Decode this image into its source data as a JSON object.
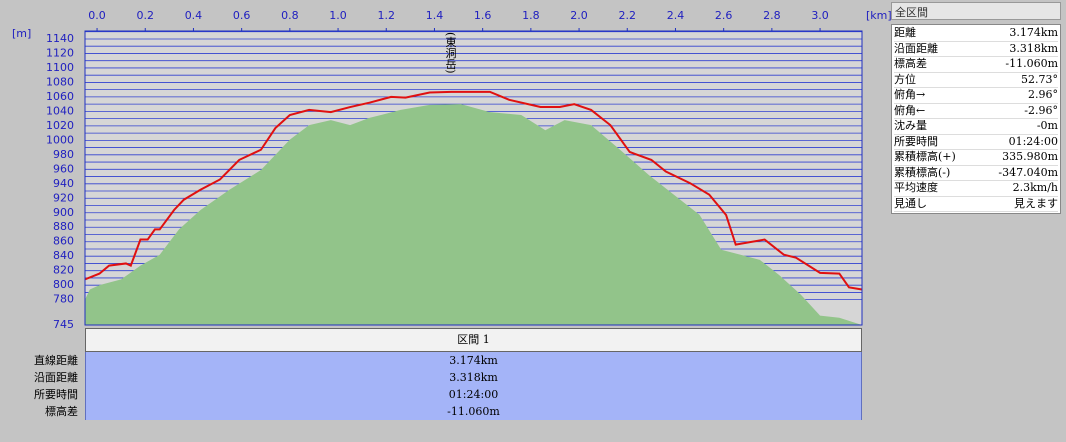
{
  "chart_data": {
    "type": "line",
    "annotation": "(東洞岳)",
    "x_unit": "[km]",
    "y_unit": "[m]",
    "xlim": [
      -0.05,
      3.174
    ],
    "ylim": [
      745,
      1151
    ],
    "xticks": [
      {
        "value": 0,
        "label": "0.0"
      },
      0.2,
      0.4,
      0.6,
      0.8,
      {
        "value": 1,
        "label": "1.0"
      },
      1.2,
      1.4,
      1.6,
      1.8,
      {
        "value": 2,
        "label": "2.0"
      },
      2.2,
      2.4,
      2.6,
      2.8,
      {
        "value": 3,
        "label": "3.0"
      }
    ],
    "yticks": [
      745,
      780,
      800,
      820,
      840,
      860,
      880,
      900,
      920,
      940,
      960,
      980,
      1000,
      1020,
      1040,
      1060,
      1080,
      1100,
      1120,
      1140
    ],
    "minor_yticks": [
      790,
      810,
      830,
      850,
      870,
      890,
      910,
      930,
      950,
      970,
      990,
      1010,
      1030,
      1050,
      1070,
      1090,
      1110,
      1130,
      1150
    ],
    "grid": true,
    "series": [
      {
        "type": "area",
        "color": "#92c48a",
        "x": [
          -0.05,
          -0.03,
          0.01,
          0.1,
          0.18,
          0.26,
          0.34,
          0.43,
          0.55,
          0.68,
          0.8,
          0.88,
          0.97,
          1.05,
          1.13,
          1.26,
          1.38,
          1.51,
          1.63,
          1.76,
          1.86,
          1.94,
          2.05,
          2.17,
          2.29,
          2.42,
          2.5,
          2.59,
          2.67,
          2.75,
          2.83,
          2.92,
          3.0,
          3.08,
          3.174
        ],
        "values": [
          780,
          794,
          800,
          808,
          827,
          842,
          877,
          904,
          932,
          959,
          1001,
          1021,
          1028,
          1021,
          1031,
          1042,
          1049,
          1050,
          1039,
          1035,
          1014,
          1028,
          1021,
          987,
          952,
          918,
          897,
          849,
          842,
          835,
          814,
          787,
          758,
          755,
          745
        ]
      },
      {
        "type": "line",
        "color": "#e01010",
        "x": [
          -0.05,
          0.01,
          0.05,
          0.12,
          0.14,
          0.18,
          0.21,
          0.24,
          0.26,
          0.32,
          0.36,
          0.43,
          0.51,
          0.59,
          0.68,
          0.74,
          0.8,
          0.88,
          0.97,
          1.05,
          1.13,
          1.22,
          1.28,
          1.38,
          1.47,
          1.63,
          1.71,
          1.84,
          1.92,
          1.98,
          2.05,
          2.13,
          2.21,
          2.3,
          2.36,
          2.46,
          2.54,
          2.61,
          2.65,
          2.77,
          2.85,
          2.9,
          3.0,
          3.08,
          3.12,
          3.174
        ],
        "values": [
          808,
          816,
          827,
          830,
          827,
          863,
          863,
          877,
          877,
          904,
          918,
          932,
          946,
          973,
          987,
          1017,
          1035,
          1042,
          1039,
          1046,
          1052,
          1060,
          1059,
          1066,
          1067,
          1067,
          1056,
          1046,
          1046,
          1050,
          1042,
          1021,
          984,
          973,
          957,
          941,
          925,
          897,
          856,
          863,
          842,
          838,
          817,
          816,
          797,
          794
        ]
      }
    ]
  },
  "section": {
    "header": "区間 1",
    "rows": [
      [
        "直線距離",
        "3.174km"
      ],
      [
        "沿面距離",
        "3.318km"
      ],
      [
        "所要時間",
        "01:24:00"
      ],
      [
        "標高差",
        "-11.060m"
      ]
    ]
  },
  "summary": {
    "title": "全区間",
    "rows": [
      [
        "距離",
        "3.174km"
      ],
      [
        "沿面距離",
        "3.318km"
      ],
      [
        "標高差",
        "-11.060m"
      ],
      [
        "方位",
        "52.73°"
      ],
      [
        "俯角→",
        "2.96°"
      ],
      [
        "俯角←",
        "-2.96°"
      ],
      [
        "沈み量",
        "-0m"
      ],
      [
        "所要時間",
        "01:24:00"
      ],
      [
        "累積標高(+)",
        "335.980m"
      ],
      [
        "累積標高(-)",
        "-347.040m"
      ],
      [
        "平均速度",
        "2.3km/h"
      ],
      [
        "見通し",
        "見えます"
      ]
    ]
  }
}
